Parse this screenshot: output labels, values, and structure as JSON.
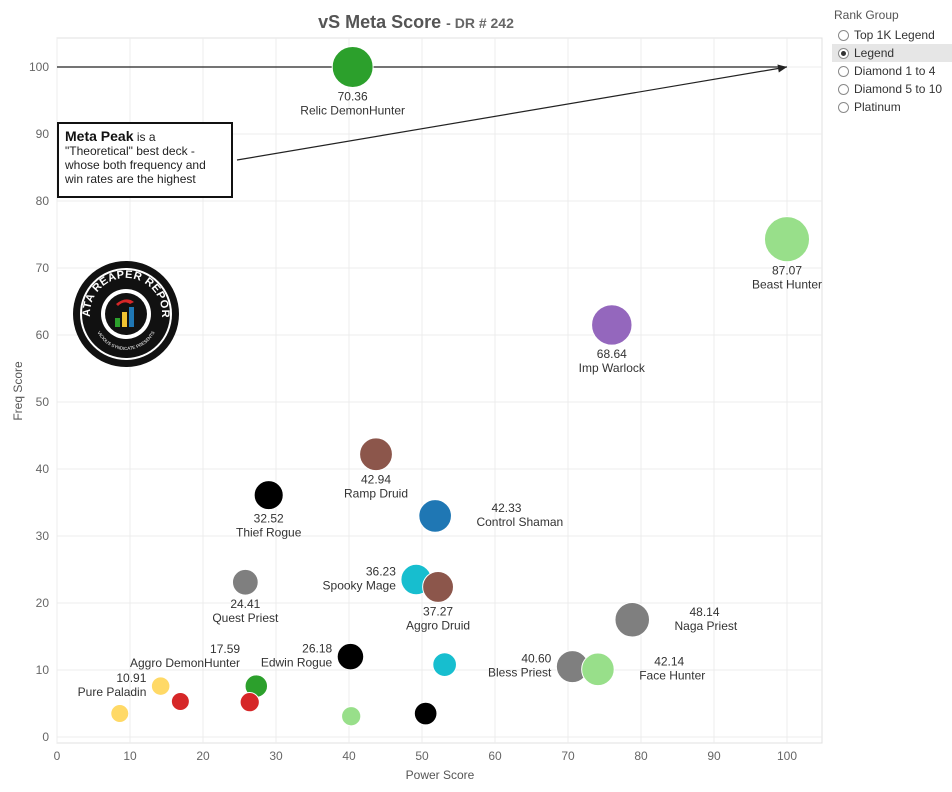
{
  "chart_data": {
    "type": "scatter",
    "title": "vS Meta Score",
    "subtitle": "DR # 242",
    "xlabel": "Power Score",
    "ylabel": "Freq Score",
    "xlim": [
      0,
      105
    ],
    "ylim": [
      -1,
      105
    ],
    "xticks": [
      0,
      10,
      20,
      30,
      40,
      50,
      60,
      70,
      80,
      90,
      100
    ],
    "yticks": [
      0,
      10,
      20,
      30,
      40,
      50,
      60,
      70,
      80,
      90,
      100
    ],
    "grid": true,
    "reference_line": {
      "y": 100,
      "x_from": 0,
      "x_to": 100
    },
    "points": [
      {
        "x": 40.5,
        "y": 100,
        "size": 70.36,
        "score": "70.36",
        "name": "Relic DemonHunter",
        "color": "#2ca02c",
        "label_pos": "below"
      },
      {
        "x": 100,
        "y": 74.3,
        "size": 87.07,
        "score": "87.07",
        "name": "Beast Hunter",
        "color": "#98df8a",
        "label_pos": "below"
      },
      {
        "x": 76,
        "y": 61.5,
        "size": 68.64,
        "score": "68.64",
        "name": "Imp Warlock",
        "color": "#9467bd",
        "label_pos": "below"
      },
      {
        "x": 43.7,
        "y": 42.2,
        "size": 42.94,
        "score": "42.94",
        "name": "Ramp Druid",
        "color": "#8c564b",
        "label_pos": "below"
      },
      {
        "x": 29,
        "y": 36.1,
        "size": 32.52,
        "score": "32.52",
        "name": "Thief Rogue",
        "color": "#000000",
        "label_pos": "below"
      },
      {
        "x": 51.8,
        "y": 33,
        "size": 42.33,
        "score": "42.33",
        "name": "Control Shaman",
        "color": "#1f77b4",
        "label_pos": "right"
      },
      {
        "x": 25.8,
        "y": 23.1,
        "size": 24.41,
        "score": "24.41",
        "name": "Quest Priest",
        "color": "#7f7f7f",
        "label_pos": "below"
      },
      {
        "x": 49.2,
        "y": 23.5,
        "size": 36.23,
        "score": "36.23",
        "name": "Spooky Mage",
        "color": "#17becf",
        "label_pos": "left"
      },
      {
        "x": 52.2,
        "y": 22.4,
        "size": 37.27,
        "score": "37.27",
        "name": "Aggro Druid",
        "color": "#8c564b",
        "label_pos": "below"
      },
      {
        "x": 78.8,
        "y": 17.5,
        "size": 48.14,
        "score": "48.14",
        "name": "Naga Priest",
        "color": "#7f7f7f",
        "label_pos": "right"
      },
      {
        "x": 70.6,
        "y": 10.5,
        "size": 40.6,
        "score": "40.60",
        "name": "Bless Priest",
        "color": "#7f7f7f",
        "label_pos": "left"
      },
      {
        "x": 74.1,
        "y": 10.1,
        "size": 42.14,
        "score": "42.14",
        "name": "Face Hunter",
        "color": "#98df8a",
        "label_pos": "right"
      },
      {
        "x": 40.2,
        "y": 12,
        "size": 26.18,
        "score": "26.18",
        "name": "Edwin Rogue",
        "color": "#000000",
        "label_pos": "left"
      },
      {
        "x": 27.3,
        "y": 7.6,
        "size": 17.59,
        "score": "17.59",
        "name": "Aggro DemonHunter",
        "color": "#2ca02c",
        "label_pos": "upper-left"
      },
      {
        "x": 14.2,
        "y": 7.6,
        "size": 10.91,
        "score": "10.91",
        "name": "Pure Paladin",
        "color": "#ffd966",
        "label_pos": "left"
      },
      {
        "x": 8.6,
        "y": 3.5,
        "size": 8,
        "score": "",
        "name": "",
        "color": "#ffd966",
        "label_pos": "none"
      },
      {
        "x": 16.9,
        "y": 5.3,
        "size": 10,
        "score": "",
        "name": "",
        "color": "#d62728",
        "label_pos": "none"
      },
      {
        "x": 26.4,
        "y": 5.2,
        "size": 12,
        "score": "",
        "name": "",
        "color": "#d62728",
        "label_pos": "none"
      },
      {
        "x": 40.3,
        "y": 3.1,
        "size": 12,
        "score": "",
        "name": "",
        "color": "#98df8a",
        "label_pos": "none"
      },
      {
        "x": 50.5,
        "y": 3.5,
        "size": 18,
        "score": "",
        "name": "",
        "color": "#000000",
        "label_pos": "none"
      },
      {
        "x": 53.1,
        "y": 10.8,
        "size": 20,
        "score": "",
        "name": "",
        "color": "#17becf",
        "label_pos": "none"
      }
    ]
  },
  "legend": {
    "title": "Rank Group",
    "options": [
      "Top 1K Legend",
      "Legend",
      "Diamond 1 to 4",
      "Diamond 5 to 10",
      "Platinum"
    ],
    "selected": "Legend"
  },
  "annotation": {
    "strong": "Meta Peak",
    "rest": " is a \"Theoretical\" best deck - whose both frequency and win rates are the highest"
  },
  "logo": {
    "line1": "DATA REAPER REPORT",
    "line2": "VICIOUS SYNDICATE PRESENTS"
  }
}
